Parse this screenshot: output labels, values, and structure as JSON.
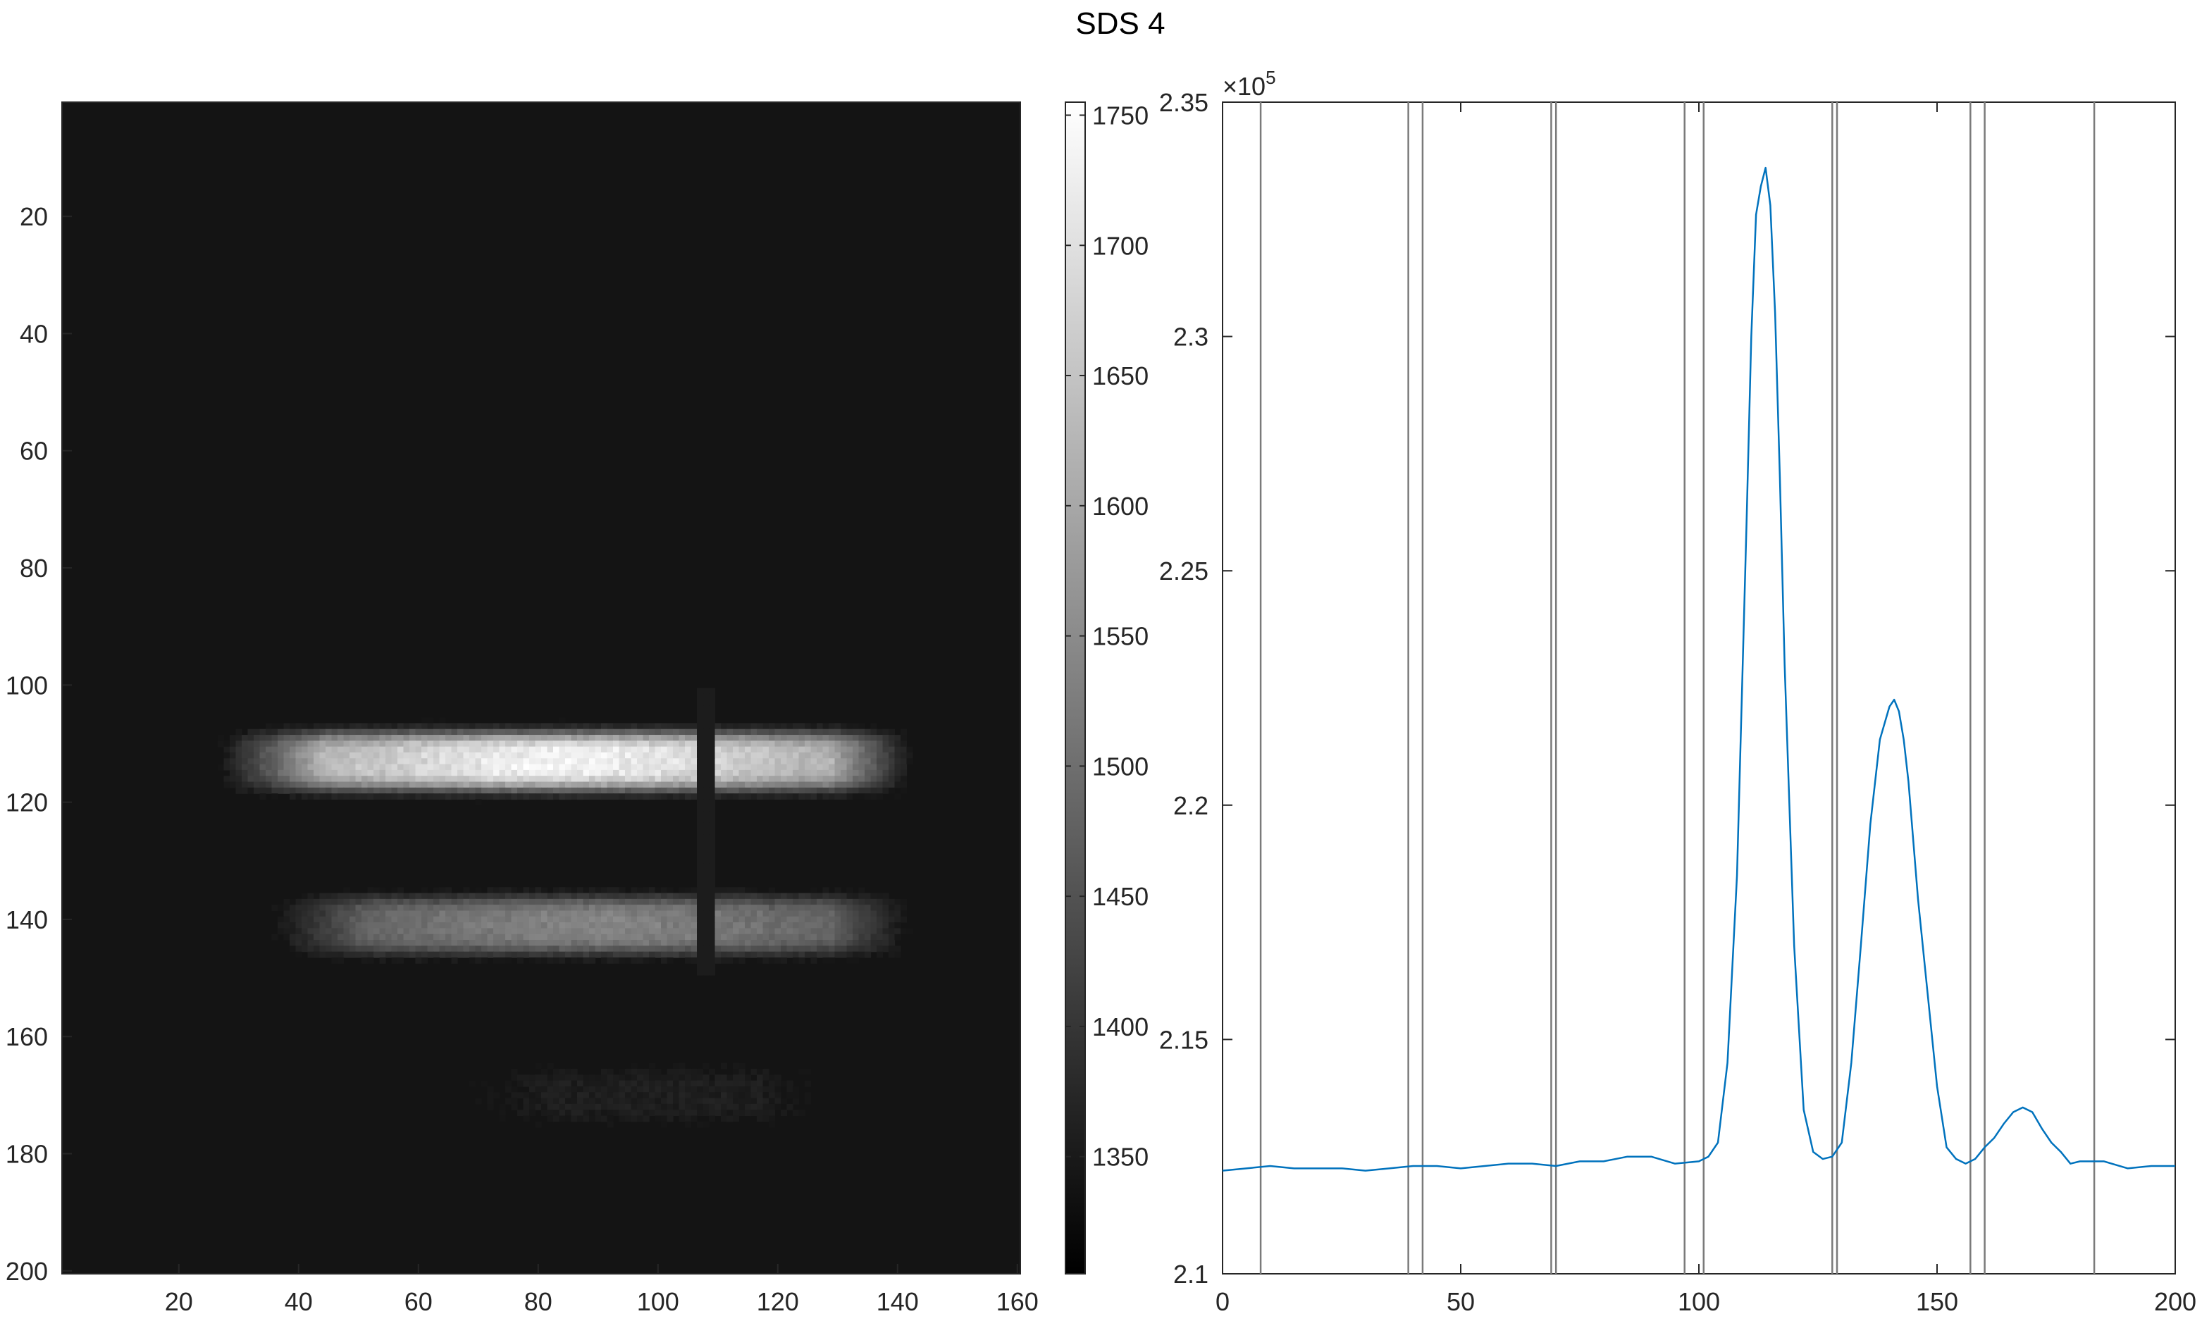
{
  "title": "SDS 4",
  "chart_data": [
    {
      "type": "heatmap",
      "title": "",
      "xlabel": "",
      "ylabel": "",
      "xlim": [
        0.5,
        160.5
      ],
      "ylim": [
        0.5,
        200.5
      ],
      "y_reversed": true,
      "xticks": [
        20,
        40,
        60,
        80,
        100,
        120,
        140,
        160
      ],
      "yticks": [
        20,
        40,
        60,
        80,
        100,
        120,
        140,
        160,
        180,
        200
      ],
      "colormap": "gray",
      "background_level": 1325,
      "bands": [
        {
          "row_center": 113,
          "row_halfwidth": 5,
          "col_start": 32,
          "col_end": 137,
          "peak": 1740
        },
        {
          "row_center": 141,
          "row_halfwidth": 5,
          "col_start": 40,
          "col_end": 137,
          "peak": 1540
        },
        {
          "row_center": 170,
          "row_halfwidth": 5,
          "col_start": 70,
          "col_end": 125,
          "peak": 1360
        }
      ],
      "dark_column": 108
    },
    {
      "type": "colorbar",
      "limits": [
        1305,
        1755
      ],
      "ticks": [
        1350,
        1400,
        1450,
        1500,
        1550,
        1600,
        1650,
        1700,
        1750
      ],
      "colormap": "gray"
    },
    {
      "type": "line",
      "xlim": [
        0,
        200
      ],
      "ylim": [
        2.1,
        2.35
      ],
      "y_exponent_label": "×10",
      "y_exponent_power": "5",
      "xticks": [
        0,
        50,
        100,
        150,
        200
      ],
      "yticks": [
        2.1,
        2.15,
        2.2,
        2.25,
        2.3,
        2.35
      ],
      "series": [
        {
          "color": "#0072BD",
          "x": [
            0,
            5,
            10,
            15,
            20,
            25,
            30,
            35,
            40,
            45,
            50,
            55,
            60,
            65,
            70,
            75,
            80,
            85,
            90,
            95,
            100,
            102,
            104,
            106,
            108,
            110,
            111,
            112,
            113,
            114,
            115,
            116,
            117,
            118,
            120,
            122,
            124,
            126,
            128,
            130,
            132,
            134,
            136,
            138,
            140,
            141,
            142,
            143,
            144,
            146,
            148,
            150,
            152,
            154,
            156,
            158,
            160,
            162,
            164,
            166,
            168,
            170,
            172,
            174,
            176,
            178,
            180,
            185,
            190,
            195,
            200
          ],
          "y": [
            2.122,
            2.1225,
            2.123,
            2.1225,
            2.1225,
            2.1225,
            2.122,
            2.1225,
            2.123,
            2.123,
            2.1225,
            2.123,
            2.1235,
            2.1235,
            2.123,
            2.124,
            2.124,
            2.125,
            2.125,
            2.1235,
            2.124,
            2.125,
            2.128,
            2.145,
            2.185,
            2.26,
            2.3,
            2.326,
            2.332,
            2.336,
            2.328,
            2.305,
            2.27,
            2.23,
            2.17,
            2.135,
            2.126,
            2.1245,
            2.125,
            2.128,
            2.145,
            2.17,
            2.196,
            2.214,
            2.221,
            2.2225,
            2.22,
            2.214,
            2.205,
            2.18,
            2.16,
            2.14,
            2.127,
            2.1245,
            2.1235,
            2.1245,
            2.127,
            2.129,
            2.132,
            2.1345,
            2.1355,
            2.1345,
            2.131,
            2.128,
            2.126,
            2.1235,
            2.124,
            2.124,
            2.1225,
            2.123,
            2.123
          ]
        }
      ],
      "vertical_lines_x": [
        8,
        39,
        42,
        69,
        70,
        97,
        101,
        128,
        129,
        157,
        160,
        183
      ]
    }
  ]
}
